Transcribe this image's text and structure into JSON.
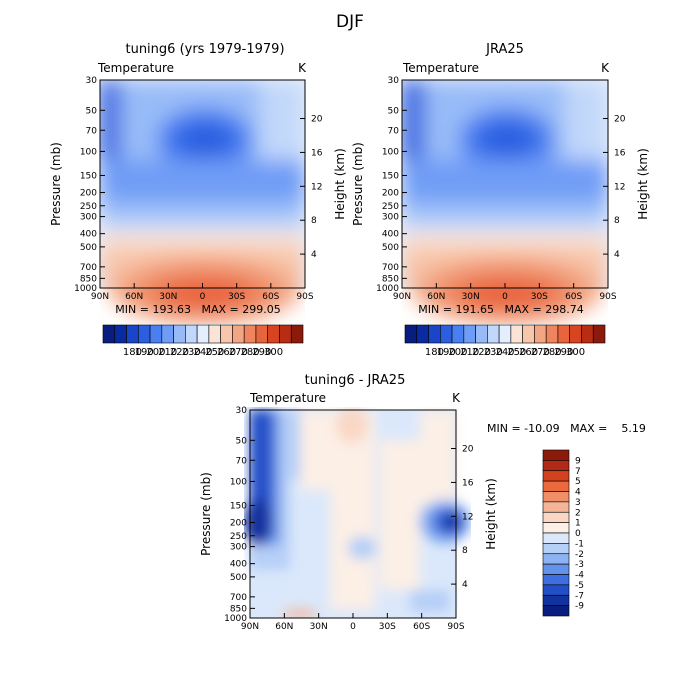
{
  "suptitle": "DJF",
  "chart_data": [
    {
      "type": "heatmap",
      "title": "tuning6 (yrs 1979-1979)",
      "left_label": "Temperature",
      "right_label": "K",
      "xlabel": "",
      "ylabel": "Pressure (mb)",
      "y2label": "Height (km)",
      "x_ticks": [
        "90N",
        "60N",
        "30N",
        "0",
        "30S",
        "60S",
        "90S"
      ],
      "y_ticks": [
        "30",
        "50",
        "70",
        "100",
        "150",
        "200",
        "250",
        "300",
        "400",
        "500",
        "700",
        "850",
        "1000"
      ],
      "y2_ticks": [
        "4",
        "8",
        "12",
        "16",
        "20"
      ],
      "xlim": [
        90,
        -90
      ],
      "ylim": [
        1000,
        30
      ],
      "log_y": true,
      "stats": "MIN = 193.63   MAX = 299.05",
      "min": 193.63,
      "max": 299.05,
      "colorbar_labels": [
        "180",
        "190",
        "200",
        "210",
        "220",
        "230",
        "240",
        "250",
        "260",
        "270",
        "280",
        "290",
        "300"
      ]
    },
    {
      "type": "heatmap",
      "title": "JRA25",
      "left_label": "Temperature",
      "right_label": "K",
      "xlabel": "",
      "ylabel": "Pressure (mb)",
      "y2label": "Height (km)",
      "x_ticks": [
        "90N",
        "60N",
        "30N",
        "0",
        "30S",
        "60S",
        "90S"
      ],
      "y_ticks": [
        "30",
        "50",
        "70",
        "100",
        "150",
        "200",
        "250",
        "300",
        "400",
        "500",
        "700",
        "850",
        "1000"
      ],
      "y2_ticks": [
        "4",
        "8",
        "12",
        "16",
        "20"
      ],
      "xlim": [
        90,
        -90
      ],
      "ylim": [
        1000,
        30
      ],
      "log_y": true,
      "stats": "MIN = 191.65   MAX = 298.74",
      "min": 191.65,
      "max": 298.74,
      "colorbar_labels": [
        "180",
        "190",
        "200",
        "210",
        "220",
        "230",
        "240",
        "250",
        "260",
        "270",
        "280",
        "290",
        "300"
      ]
    },
    {
      "type": "heatmap",
      "title": "tuning6 - JRA25",
      "left_label": "Temperature",
      "right_label": "K",
      "xlabel": "",
      "ylabel": "Pressure (mb)",
      "y2label": "Height (km)",
      "x_ticks": [
        "90N",
        "60N",
        "30N",
        "0",
        "30S",
        "60S",
        "90S"
      ],
      "y_ticks": [
        "30",
        "50",
        "70",
        "100",
        "150",
        "200",
        "250",
        "300",
        "400",
        "500",
        "700",
        "850",
        "1000"
      ],
      "y2_ticks": [
        "4",
        "8",
        "12",
        "16",
        "20"
      ],
      "xlim": [
        90,
        -90
      ],
      "ylim": [
        1000,
        30
      ],
      "log_y": true,
      "stats": "MIN = -10.09   MAX =    5.19",
      "min": -10.09,
      "max": 5.19,
      "colorbar_labels": [
        "9",
        "7",
        "5",
        "4",
        "3",
        "2",
        "1",
        "0",
        "-1",
        "-2",
        "-3",
        "-4",
        "-5",
        "-7",
        "-9"
      ]
    }
  ],
  "palettes": {
    "absolute": [
      "#081d7e",
      "#0a2ba0",
      "#1a45c8",
      "#2c5ee0",
      "#4a7ff2",
      "#6f9cf6",
      "#98bbf8",
      "#c2d8fa",
      "#e5eefc",
      "#fbe4d5",
      "#f8c6ab",
      "#f3a683",
      "#ef855f",
      "#e8643c",
      "#d84420",
      "#b82c14",
      "#8c1a0a"
    ],
    "difference": [
      "#8c1a0a",
      "#b02a15",
      "#d2421f",
      "#ea6a3d",
      "#f08f67",
      "#f4b497",
      "#f9d7c4",
      "#fcefe6",
      "#dbe8fb",
      "#b6cff7",
      "#8cb2f2",
      "#6492ea",
      "#3f6ee0",
      "#224ec8",
      "#12329e",
      "#081d7e"
    ]
  }
}
